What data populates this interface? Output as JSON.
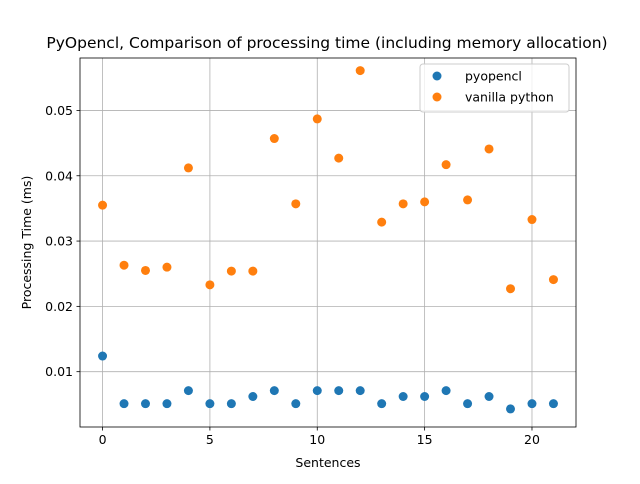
{
  "chart_data": {
    "type": "scatter",
    "title": "PyOpencl, Comparison of processing time (including memory allocation)",
    "xlabel": "Sentences",
    "ylabel": "Processing Time (ms)",
    "xlim": [
      -1.05,
      22.05
    ],
    "ylim": [
      0.00153,
      0.05803
    ],
    "xticks": [
      0,
      5,
      10,
      15,
      20
    ],
    "xtick_labels": [
      "0",
      "5",
      "10",
      "15",
      "20"
    ],
    "yticks": [
      0.01,
      0.02,
      0.03,
      0.04,
      0.05
    ],
    "ytick_labels": [
      "0.01",
      "0.02",
      "0.03",
      "0.04",
      "0.05"
    ],
    "grid": true,
    "legend_position": "upper-right",
    "x": [
      0,
      1,
      2,
      3,
      4,
      5,
      6,
      7,
      8,
      9,
      10,
      11,
      12,
      13,
      14,
      15,
      16,
      17,
      18,
      19,
      20,
      21
    ],
    "series": [
      {
        "name": "pyopencl",
        "color": "#1f77b4",
        "values": [
          0.0124,
          0.0051,
          0.0051,
          0.0051,
          0.0071,
          0.0051,
          0.0051,
          0.0062,
          0.0071,
          0.0051,
          0.0071,
          0.0071,
          0.0071,
          0.0051,
          0.0062,
          0.0062,
          0.0071,
          0.0051,
          0.0062,
          0.0043,
          0.0051,
          0.0051
        ]
      },
      {
        "name": "vanilla python",
        "color": "#ff7f0e",
        "values": [
          0.0355,
          0.0263,
          0.0255,
          0.026,
          0.0412,
          0.0233,
          0.0254,
          0.0254,
          0.0457,
          0.0357,
          0.0487,
          0.0427,
          0.0561,
          0.0329,
          0.0357,
          0.036,
          0.0417,
          0.0363,
          0.0441,
          0.0227,
          0.0333,
          0.0241
        ]
      }
    ]
  }
}
